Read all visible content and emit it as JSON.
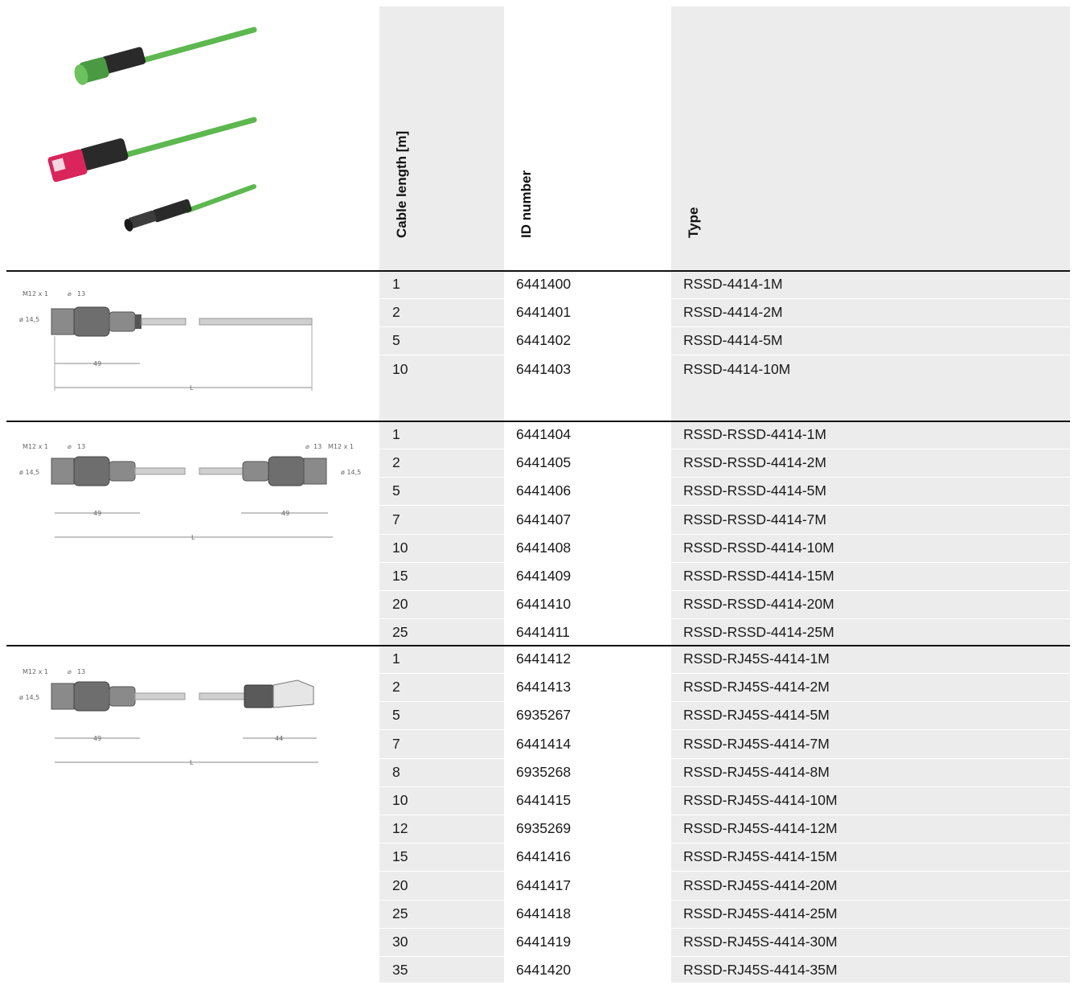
{
  "headers": {
    "cable_length": "Cable length [m]",
    "id_number": "ID number",
    "type": "Type"
  },
  "drawing_labels": {
    "thread": "M12 x 1",
    "wrench": "13",
    "diameter": "ø 14,5",
    "len49": "49",
    "len44": "44",
    "total": "L"
  },
  "colors": {
    "shaded_column": "#ececec",
    "cable_green": "#5db84f",
    "rj45_pink": "#d9245c",
    "connector_black": "#2a2a2a"
  },
  "groups": [
    {
      "name": "RSSD",
      "drawing": "single-m12-connector",
      "rows": [
        {
          "length": "1",
          "id": "6441400",
          "type": "RSSD-4414-1M"
        },
        {
          "length": "2",
          "id": "6441401",
          "type": "RSSD-4414-2M"
        },
        {
          "length": "5",
          "id": "6441402",
          "type": "RSSD-4414-5M"
        },
        {
          "length": "10",
          "id": "6441403",
          "type": "RSSD-4414-10M"
        }
      ]
    },
    {
      "name": "RSSD-RSSD",
      "drawing": "double-m12-connector",
      "rows": [
        {
          "length": "1",
          "id": "6441404",
          "type": "RSSD-RSSD-4414-1M"
        },
        {
          "length": "2",
          "id": "6441405",
          "type": "RSSD-RSSD-4414-2M"
        },
        {
          "length": "5",
          "id": "6441406",
          "type": "RSSD-RSSD-4414-5M"
        },
        {
          "length": "7",
          "id": "6441407",
          "type": "RSSD-RSSD-4414-7M"
        },
        {
          "length": "10",
          "id": "6441408",
          "type": "RSSD-RSSD-4414-10M"
        },
        {
          "length": "15",
          "id": "6441409",
          "type": "RSSD-RSSD-4414-15M"
        },
        {
          "length": "20",
          "id": "6441410",
          "type": "RSSD-RSSD-4414-20M"
        },
        {
          "length": "25",
          "id": "6441411",
          "type": "RSSD-RSSD-4414-25M"
        }
      ]
    },
    {
      "name": "RSSD-RJ45S",
      "drawing": "m12-to-rj45-connector",
      "rows": [
        {
          "length": "1",
          "id": "6441412",
          "type": "RSSD-RJ45S-4414-1M"
        },
        {
          "length": "2",
          "id": "6441413",
          "type": "RSSD-RJ45S-4414-2M"
        },
        {
          "length": "5",
          "id": "6935267",
          "type": "RSSD-RJ45S-4414-5M"
        },
        {
          "length": "7",
          "id": "6441414",
          "type": "RSSD-RJ45S-4414-7M"
        },
        {
          "length": "8",
          "id": "6935268",
          "type": "RSSD-RJ45S-4414-8M"
        },
        {
          "length": "10",
          "id": "6441415",
          "type": "RSSD-RJ45S-4414-10M"
        },
        {
          "length": "12",
          "id": "6935269",
          "type": "RSSD-RJ45S-4414-12M"
        },
        {
          "length": "15",
          "id": "6441416",
          "type": "RSSD-RJ45S-4414-15M"
        },
        {
          "length": "20",
          "id": "6441417",
          "type": "RSSD-RJ45S-4414-20M"
        },
        {
          "length": "25",
          "id": "6441418",
          "type": "RSSD-RJ45S-4414-25M"
        },
        {
          "length": "30",
          "id": "6441419",
          "type": "RSSD-RJ45S-4414-30M"
        },
        {
          "length": "35",
          "id": "6441420",
          "type": "RSSD-RJ45S-4414-35M"
        }
      ]
    }
  ]
}
